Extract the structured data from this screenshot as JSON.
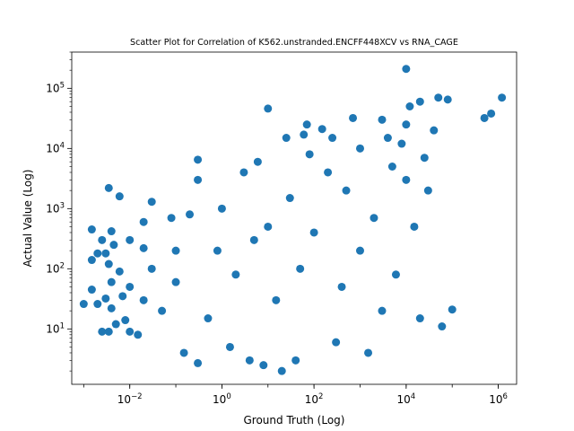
{
  "chart_data": {
    "type": "scatter",
    "title": "Scatter Plot for Correlation of K562.unstranded.ENCFF448XCV vs RNA_CAGE",
    "xlabel": "Ground Truth (Log)",
    "ylabel": "Actual Value (Log)",
    "x_scale": "log",
    "y_scale": "log",
    "xlim": [
      0.00055,
      2500000
    ],
    "ylim": [
      1.2,
      400000
    ],
    "x_ticks": [
      {
        "base": "10",
        "exp": "−2",
        "value": 0.01
      },
      {
        "base": "10",
        "exp": "0",
        "value": 1
      },
      {
        "base": "10",
        "exp": "2",
        "value": 100
      },
      {
        "base": "10",
        "exp": "4",
        "value": 10000
      },
      {
        "base": "10",
        "exp": "6",
        "value": 1000000
      }
    ],
    "y_ticks": [
      {
        "base": "10",
        "exp": "1",
        "value": 10
      },
      {
        "base": "10",
        "exp": "2",
        "value": 100
      },
      {
        "base": "10",
        "exp": "3",
        "value": 1000
      },
      {
        "base": "10",
        "exp": "4",
        "value": 10000
      },
      {
        "base": "10",
        "exp": "5",
        "value": 100000
      }
    ],
    "marker_color": "#1f77b4",
    "grid": false,
    "legend": "none",
    "points": [
      [
        0.001,
        26
      ],
      [
        0.0015,
        450
      ],
      [
        0.0015,
        140
      ],
      [
        0.0015,
        45
      ],
      [
        0.002,
        180
      ],
      [
        0.002,
        26
      ],
      [
        0.0025,
        300
      ],
      [
        0.0025,
        9
      ],
      [
        0.003,
        180
      ],
      [
        0.003,
        32
      ],
      [
        0.0035,
        2200
      ],
      [
        0.0035,
        120
      ],
      [
        0.0035,
        9
      ],
      [
        0.004,
        420
      ],
      [
        0.004,
        60
      ],
      [
        0.004,
        22
      ],
      [
        0.0045,
        250
      ],
      [
        0.005,
        12
      ],
      [
        0.006,
        1600
      ],
      [
        0.006,
        90
      ],
      [
        0.007,
        35
      ],
      [
        0.008,
        14
      ],
      [
        0.01,
        300
      ],
      [
        0.01,
        50
      ],
      [
        0.01,
        9
      ],
      [
        0.015,
        8
      ],
      [
        0.02,
        600
      ],
      [
        0.02,
        220
      ],
      [
        0.02,
        30
      ],
      [
        0.03,
        1300
      ],
      [
        0.03,
        100
      ],
      [
        0.05,
        20
      ],
      [
        0.08,
        700
      ],
      [
        0.1,
        200
      ],
      [
        0.1,
        60
      ],
      [
        0.15,
        4
      ],
      [
        0.2,
        800
      ],
      [
        0.3,
        6500
      ],
      [
        0.3,
        3000
      ],
      [
        0.3,
        2.7
      ],
      [
        0.5,
        15
      ],
      [
        0.8,
        200
      ],
      [
        1,
        1000
      ],
      [
        1.5,
        5
      ],
      [
        2,
        80
      ],
      [
        3,
        4000
      ],
      [
        4,
        3
      ],
      [
        5,
        300
      ],
      [
        6,
        6000
      ],
      [
        8,
        2.5
      ],
      [
        10,
        46000
      ],
      [
        10,
        500
      ],
      [
        15,
        30
      ],
      [
        20,
        2
      ],
      [
        25,
        15000
      ],
      [
        30,
        1500
      ],
      [
        40,
        3
      ],
      [
        50,
        100
      ],
      [
        60,
        17000
      ],
      [
        70,
        25000
      ],
      [
        80,
        8000
      ],
      [
        100,
        400
      ],
      [
        150,
        21000
      ],
      [
        200,
        4000
      ],
      [
        250,
        15000
      ],
      [
        300,
        6
      ],
      [
        400,
        50
      ],
      [
        500,
        2000
      ],
      [
        700,
        32000
      ],
      [
        1000,
        10000
      ],
      [
        1000,
        200
      ],
      [
        1500,
        4
      ],
      [
        2000,
        700
      ],
      [
        3000,
        30000
      ],
      [
        3000,
        20
      ],
      [
        4000,
        15000
      ],
      [
        5000,
        5000
      ],
      [
        6000,
        80
      ],
      [
        8000,
        12000
      ],
      [
        10000,
        210000
      ],
      [
        10000,
        25000
      ],
      [
        10000,
        3000
      ],
      [
        12000,
        50000
      ],
      [
        15000,
        500
      ],
      [
        20000,
        60000
      ],
      [
        20000,
        15
      ],
      [
        25000,
        7000
      ],
      [
        30000,
        2000
      ],
      [
        40000,
        20000
      ],
      [
        50000,
        70000
      ],
      [
        60000,
        11
      ],
      [
        80000,
        65000
      ],
      [
        100000,
        21
      ],
      [
        500000,
        32000
      ],
      [
        700000,
        38000
      ],
      [
        1200000,
        70000
      ]
    ]
  }
}
